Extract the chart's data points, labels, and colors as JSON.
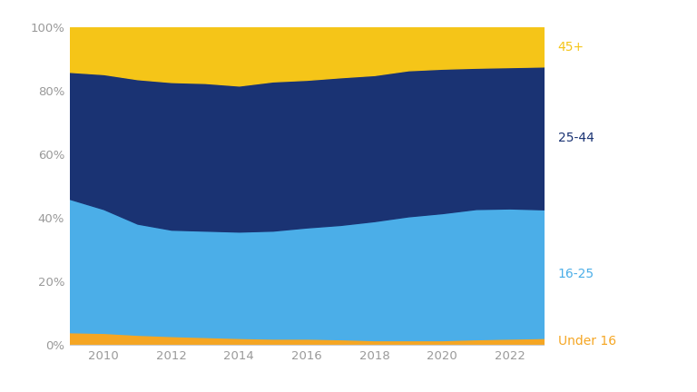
{
  "years": [
    2009,
    2010,
    2011,
    2012,
    2013,
    2014,
    2015,
    2016,
    2017,
    2018,
    2019,
    2020,
    2021,
    2022,
    2023
  ],
  "under16": [
    4.0,
    3.8,
    3.2,
    2.8,
    2.5,
    2.2,
    2.0,
    2.0,
    1.8,
    1.5,
    1.5,
    1.5,
    1.8,
    2.0,
    2.2
  ],
  "age1625": [
    42.0,
    39.0,
    35.0,
    33.5,
    33.5,
    33.5,
    34.0,
    35.0,
    36.0,
    37.5,
    39.0,
    40.0,
    41.0,
    41.0,
    40.5
  ],
  "age2544": [
    40.0,
    42.5,
    45.5,
    46.5,
    46.5,
    46.0,
    47.0,
    46.5,
    46.5,
    46.0,
    46.0,
    45.5,
    44.5,
    44.5,
    45.0
  ],
  "age45plus": [
    14.0,
    14.7,
    16.3,
    17.2,
    17.5,
    18.3,
    17.0,
    16.5,
    15.7,
    15.0,
    13.5,
    13.0,
    12.7,
    12.5,
    12.3
  ],
  "colors": {
    "under16": "#F5A623",
    "age1625": "#4BAEE8",
    "age2544": "#1A3373",
    "age45plus": "#F5C518"
  },
  "label_colors": {
    "under16": "#F5A623",
    "age1625": "#4BAEE8",
    "age2544": "#1A3373",
    "age45plus": "#F5C518"
  },
  "labels": {
    "under16": "Under 16",
    "age1625": "16-25",
    "age2544": "25-44",
    "age45plus": "45+"
  },
  "yticks": [
    0,
    20,
    40,
    60,
    80,
    100
  ],
  "ytick_labels": [
    "0%",
    "20%",
    "40%",
    "60%",
    "80%",
    "100%"
  ],
  "xticks": [
    2010,
    2012,
    2014,
    2016,
    2018,
    2020,
    2022
  ],
  "xlim_min": 2009.0,
  "xlim_max": 2023.0,
  "background_color": "#ffffff"
}
